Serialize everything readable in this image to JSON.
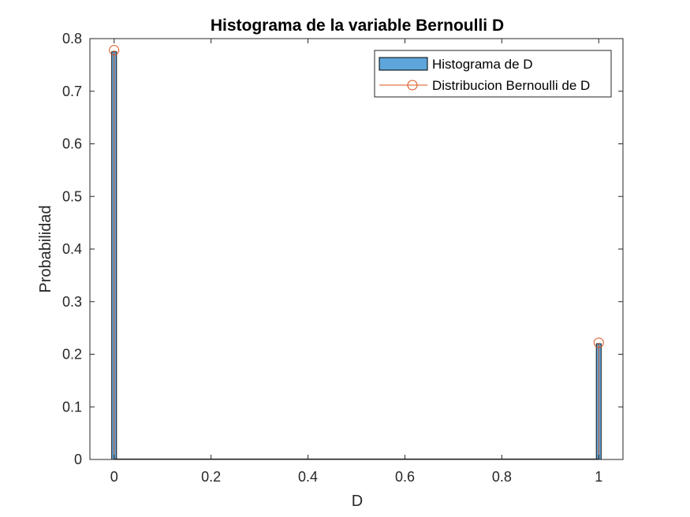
{
  "chart_data": {
    "type": "bar",
    "title": "Histograma de la variable Bernoulli D",
    "xlabel": "D",
    "ylabel": "Probabilidad",
    "xlim": [
      -0.05,
      1.05
    ],
    "ylim": [
      0,
      0.8
    ],
    "xticks": [
      "0",
      "0.2",
      "0.4",
      "0.6",
      "0.8",
      "1"
    ],
    "xtick_values": [
      0,
      0.2,
      0.4,
      0.6,
      0.8,
      1
    ],
    "yticks": [
      "0",
      "0.1",
      "0.2",
      "0.3",
      "0.4",
      "0.5",
      "0.6",
      "0.7",
      "0.8"
    ],
    "ytick_values": [
      0,
      0.1,
      0.2,
      0.3,
      0.4,
      0.5,
      0.6,
      0.7,
      0.8
    ],
    "grid": false,
    "legend_placement": "top-right",
    "series": [
      {
        "name": "Histograma de D",
        "kind": "histogram",
        "color": "#5DA5DA",
        "x": [
          0,
          1
        ],
        "values": [
          0.775,
          0.22
        ],
        "bin_width": 0.01
      },
      {
        "name": "Distribucion Bernoulli de D",
        "kind": "stem",
        "color": "#D95319",
        "x": [
          0,
          1
        ],
        "values": [
          0.778,
          0.222
        ]
      }
    ]
  }
}
